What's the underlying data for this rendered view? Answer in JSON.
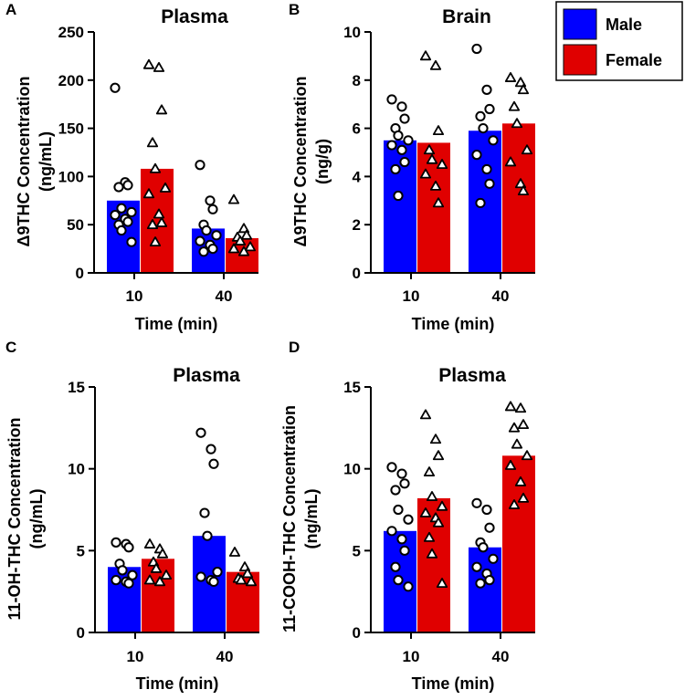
{
  "legend": {
    "items": [
      {
        "label": "Male",
        "color": "#0000ff",
        "marker": "circle"
      },
      {
        "label": "Female",
        "color": "#e00000",
        "marker": "triangle"
      }
    ]
  },
  "chart_data": [
    {
      "panel": "A",
      "type": "bar",
      "title": "Plasma",
      "xlabel": "Time (min)",
      "ylabel": [
        "Δ9THC Concentration",
        "(ng/mL)"
      ],
      "categories": [
        "10",
        "40"
      ],
      "ylim": [
        0,
        250
      ],
      "yticks": [
        0,
        50,
        100,
        150,
        200,
        250
      ],
      "ytick_labels": [
        "0",
        "50",
        "100",
        "150",
        "200",
        "250"
      ],
      "series": [
        {
          "name": "Male",
          "values": [
            75,
            46
          ],
          "points": [
            [
              192,
              94,
              91,
              89,
              67,
              63,
              60,
              56,
              53,
              50,
              44,
              32
            ],
            [
              112,
              75,
              66,
              50,
              44,
              39,
              33,
              29,
              25,
              22
            ]
          ]
        },
        {
          "name": "Female",
          "values": [
            108,
            36
          ],
          "points": [
            [
              216,
              213,
              169,
              135,
              108,
              88,
              82,
              61,
              52,
              50,
              32
            ],
            [
              76,
              46,
              39,
              37,
              33,
              27,
              25,
              22
            ]
          ]
        }
      ]
    },
    {
      "panel": "B",
      "type": "bar",
      "title": "Brain",
      "xlabel": "Time (min)",
      "ylabel": [
        "Δ9THC Concentration",
        "(ng/g)"
      ],
      "categories": [
        "10",
        "40"
      ],
      "ylim": [
        0,
        10
      ],
      "yticks": [
        0,
        2,
        4,
        6,
        8,
        10
      ],
      "ytick_labels": [
        "0",
        "2",
        "4",
        "6",
        "8",
        "10"
      ],
      "series": [
        {
          "name": "Male",
          "values": [
            5.5,
            5.9
          ],
          "points": [
            [
              7.2,
              6.9,
              6.4,
              6.0,
              5.7,
              5.5,
              5.3,
              5.1,
              4.6,
              4.3,
              3.2
            ],
            [
              9.3,
              7.6,
              6.8,
              6.5,
              6.0,
              5.5,
              4.9,
              4.3,
              3.7,
              2.9
            ]
          ]
        },
        {
          "name": "Female",
          "values": [
            5.4,
            6.2
          ],
          "points": [
            [
              9.0,
              8.6,
              5.9,
              5.1,
              4.7,
              4.5,
              4.1,
              3.6,
              2.9
            ],
            [
              8.1,
              7.9,
              7.6,
              6.9,
              6.2,
              5.1,
              4.6,
              3.7,
              3.4
            ]
          ]
        }
      ]
    },
    {
      "panel": "C",
      "type": "bar",
      "title": "Plasma",
      "xlabel": "Time (min)",
      "ylabel": [
        "11-OH-THC Concentration",
        "(ng/mL)"
      ],
      "categories": [
        "10",
        "40"
      ],
      "ylim": [
        0,
        15
      ],
      "yticks": [
        0,
        5,
        10,
        15
      ],
      "ytick_labels": [
        "0",
        "5",
        "10",
        "15"
      ],
      "series": [
        {
          "name": "Male",
          "values": [
            4.0,
            5.9
          ],
          "points": [
            [
              5.5,
              5.4,
              5.2,
              4.2,
              3.8,
              3.5,
              3.2,
              3.1,
              3.0
            ],
            [
              12.2,
              11.2,
              10.3,
              7.3,
              5.9,
              3.7,
              3.4,
              3.2,
              3.1
            ]
          ]
        },
        {
          "name": "Female",
          "values": [
            4.5,
            3.7
          ],
          "points": [
            [
              5.4,
              5.1,
              4.8,
              4.3,
              3.9,
              3.5,
              3.2,
              3.1
            ],
            [
              4.9,
              4.0,
              3.6,
              3.3,
              3.2,
              3.1
            ]
          ]
        }
      ]
    },
    {
      "panel": "D",
      "type": "bar",
      "title": "Plasma",
      "xlabel": "Time (min)",
      "ylabel": [
        "11-COOH-THC Concentration",
        "(ng/mL)"
      ],
      "categories": [
        "10",
        "40"
      ],
      "ylim": [
        0,
        15
      ],
      "yticks": [
        0,
        5,
        10,
        15
      ],
      "ytick_labels": [
        "0",
        "5",
        "10",
        "15"
      ],
      "series": [
        {
          "name": "Male",
          "values": [
            6.2,
            5.2
          ],
          "points": [
            [
              10.1,
              9.7,
              9.1,
              8.7,
              7.5,
              6.9,
              6.2,
              5.7,
              5.0,
              4.0,
              3.2,
              2.8
            ],
            [
              7.9,
              7.5,
              6.4,
              5.5,
              5.2,
              4.5,
              4.0,
              3.6,
              3.2,
              3.0
            ]
          ]
        },
        {
          "name": "Female",
          "values": [
            8.2,
            10.8
          ],
          "points": [
            [
              13.3,
              11.8,
              10.8,
              9.8,
              8.3,
              7.7,
              7.3,
              7.0,
              6.7,
              5.8,
              4.8,
              3.0
            ],
            [
              13.8,
              13.7,
              12.7,
              12.5,
              11.5,
              10.8,
              10.2,
              9.2,
              8.2,
              7.8
            ]
          ]
        }
      ]
    }
  ]
}
